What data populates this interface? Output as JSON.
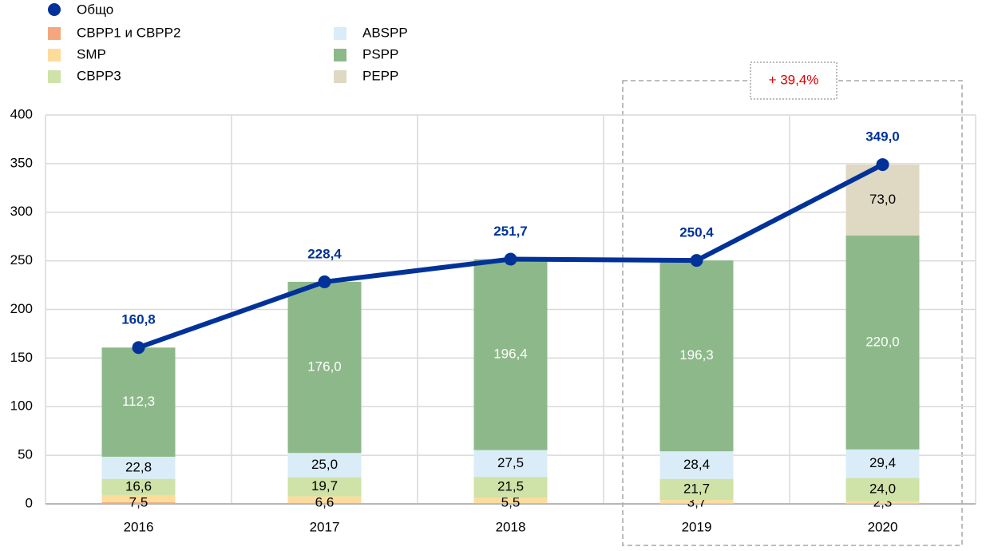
{
  "chart_data": {
    "type": "stacked-bar-line",
    "categories": [
      "2016",
      "2017",
      "2018",
      "2019",
      "2020"
    ],
    "series": [
      {
        "name": "CBPP1 и CBPP2",
        "color": "#f4a77d",
        "values": [
          1.6,
          1.1,
          0.8,
          0.3,
          0.3
        ]
      },
      {
        "name": "SMP",
        "color": "#fddc9b",
        "values": [
          7.5,
          6.6,
          5.5,
          3.7,
          2.3
        ],
        "value_labels": [
          "7,5",
          "6,6",
          "5,5",
          "3,7",
          "2,3"
        ]
      },
      {
        "name": "CBPP3",
        "color": "#cfe2a7",
        "values": [
          16.6,
          19.7,
          21.5,
          21.7,
          24.0
        ],
        "value_labels": [
          "16,6",
          "19,7",
          "21,5",
          "21,7",
          "24,0"
        ]
      },
      {
        "name": "ABSPP",
        "color": "#d9ecf7",
        "values": [
          22.8,
          25.0,
          27.5,
          28.4,
          29.4
        ],
        "value_labels": [
          "22,8",
          "25,0",
          "27,5",
          "28,4",
          "29,4"
        ]
      },
      {
        "name": "PSPP",
        "color": "#8db98a",
        "values": [
          112.3,
          176.0,
          196.4,
          196.3,
          220.0
        ],
        "value_labels": [
          "112,3",
          "176,0",
          "196,4",
          "196,3",
          "220,0"
        ]
      },
      {
        "name": "PEPP",
        "color": "#dfd8c3",
        "values": [
          null,
          null,
          null,
          null,
          73.0
        ],
        "value_labels": [
          null,
          null,
          null,
          null,
          "73,0"
        ]
      }
    ],
    "line": {
      "name": "Общо",
      "color": "#003299",
      "values": [
        160.8,
        228.4,
        251.7,
        250.4,
        349.0
      ],
      "value_labels": [
        "160,8",
        "228,4",
        "251,7",
        "250,4",
        "349,0"
      ]
    },
    "annotation": "+ 39,4%",
    "ylim": [
      0,
      400
    ],
    "yticks": [
      0,
      50,
      100,
      150,
      200,
      250,
      300,
      350,
      400
    ],
    "grid": true
  }
}
